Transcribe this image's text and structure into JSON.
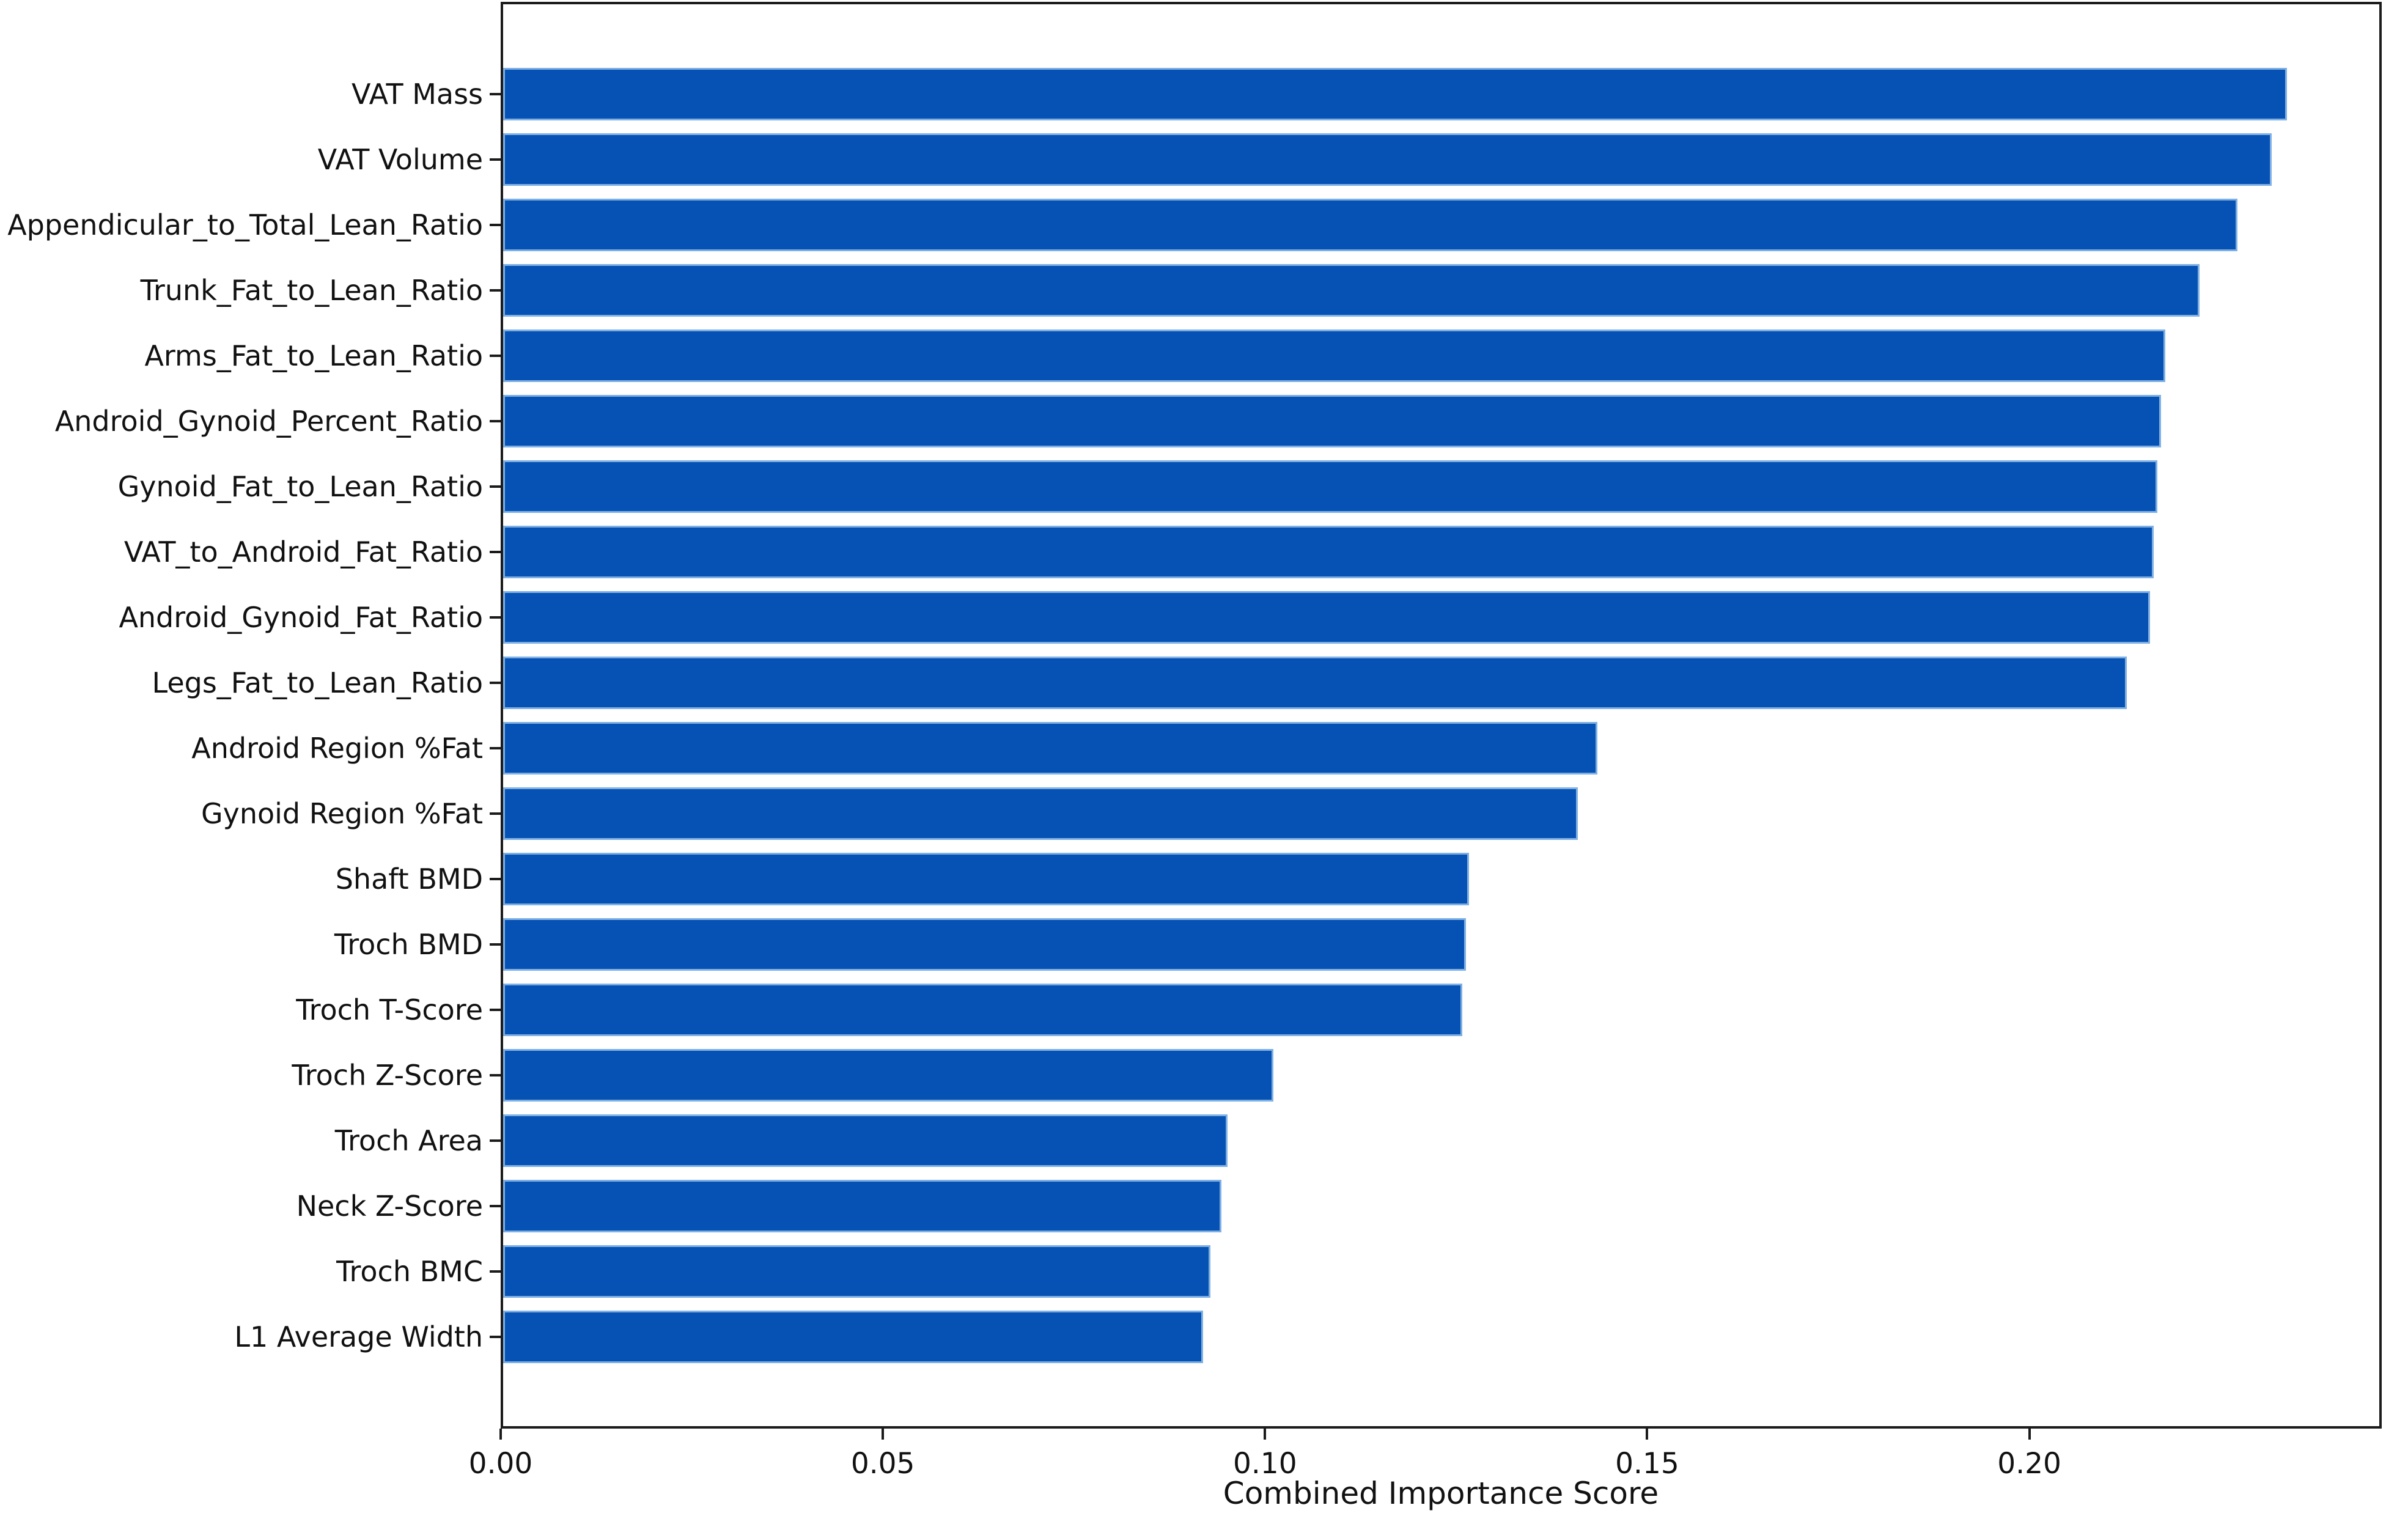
{
  "chart_data": {
    "type": "bar",
    "orientation": "horizontal",
    "title": "",
    "xlabel": "Combined Importance Score",
    "ylabel": "",
    "categories": [
      "VAT Mass",
      "VAT Volume",
      "Appendicular_to_Total_Lean_Ratio",
      "Trunk_Fat_to_Lean_Ratio",
      "Arms_Fat_to_Lean_Ratio",
      "Android_Gynoid_Percent_Ratio",
      "Gynoid_Fat_to_Lean_Ratio",
      "VAT_to_Android_Fat_Ratio",
      "Android_Gynoid_Fat_Ratio",
      "Legs_Fat_to_Lean_Ratio",
      "Android Region %Fat",
      "Gynoid Region %Fat",
      "Shaft BMD",
      "Troch BMD",
      "Troch T-Score",
      "Troch Z-Score",
      "Troch Area",
      "Neck Z-Score",
      "Troch BMC",
      "L1 Average Width"
    ],
    "values": [
      0.234,
      0.232,
      0.2275,
      0.2225,
      0.218,
      0.2175,
      0.217,
      0.2165,
      0.216,
      0.213,
      0.1435,
      0.141,
      0.1267,
      0.1263,
      0.1258,
      0.101,
      0.095,
      0.0942,
      0.0928,
      0.0918
    ],
    "x_tick_labels": [
      "0.00",
      "0.05",
      "0.10",
      "0.15",
      "0.20"
    ],
    "x_tick_values": [
      0.0,
      0.05,
      0.1,
      0.15,
      0.2
    ],
    "xlim": [
      0.0,
      0.2461
    ],
    "grid": false,
    "legend": false,
    "bar_color": "#0551b4",
    "bar_edge_color": "#7fb0e4",
    "spine_color": "#1b1b1b",
    "text_color": "#111111"
  }
}
